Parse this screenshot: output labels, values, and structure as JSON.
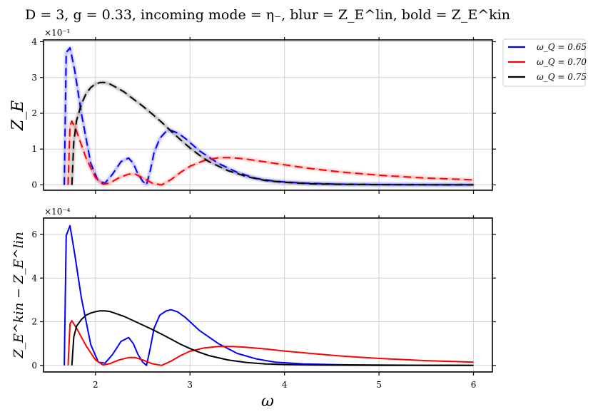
{
  "figure": {
    "title": "D = 3, g = 0.33, incoming mode = η₋, blur = Z_E^lin, bold = Z_E^kin"
  },
  "legend": {
    "entries": [
      {
        "label": "ω_Q = 0.65",
        "color": "#0000ff"
      },
      {
        "label": "ω_Q = 0.70",
        "color": "#ff0000"
      },
      {
        "label": "ω_Q = 0.75",
        "color": "#000000"
      }
    ]
  },
  "chart_data": [
    {
      "type": "line",
      "title": "D = 3, g = 0.33, incoming mode = η₋, blur = Z_E^lin, bold = Z_E^kin",
      "xlabel": "",
      "ylabel": "Z_E",
      "y_scale_label": "×10⁻¹",
      "xlim": [
        1.45,
        6.2
      ],
      "ylim": [
        -0.15,
        4.05
      ],
      "xticks": [
        2,
        3,
        4,
        5,
        6
      ],
      "yticks": [
        0,
        1,
        2,
        3,
        4
      ],
      "ytick_labels": [
        "0",
        "1",
        "2",
        "3",
        "4"
      ],
      "grid": true,
      "style": "blurred solid lines overlaid with bold dashed lines",
      "series": [
        {
          "name": "ω_Q = 0.65",
          "color": "#0000ff",
          "x": [
            1.67,
            1.69,
            1.73,
            1.78,
            1.85,
            1.95,
            2.03,
            2.1,
            2.18,
            2.27,
            2.35,
            2.4,
            2.45,
            2.5,
            2.54,
            2.58,
            2.62,
            2.68,
            2.75,
            2.8,
            2.87,
            2.95,
            3.1,
            3.3,
            3.5,
            3.7,
            3.9,
            4.2,
            4.6,
            5.0,
            5.5,
            6.0
          ],
          "y": [
            0.0,
            3.7,
            3.83,
            3.2,
            2.0,
            0.6,
            0.1,
            0.05,
            0.3,
            0.65,
            0.75,
            0.6,
            0.3,
            0.1,
            0.0,
            0.4,
            0.9,
            1.3,
            1.5,
            1.52,
            1.45,
            1.3,
            0.95,
            0.6,
            0.35,
            0.18,
            0.1,
            0.05,
            0.02,
            0.01,
            0.005,
            0.003
          ]
        },
        {
          "name": "ω_Q = 0.70",
          "color": "#ff0000",
          "x": [
            1.71,
            1.73,
            1.75,
            1.8,
            1.9,
            2.0,
            2.08,
            2.15,
            2.25,
            2.35,
            2.42,
            2.5,
            2.6,
            2.7,
            2.8,
            2.9,
            3.0,
            3.15,
            3.3,
            3.45,
            3.6,
            3.8,
            4.0,
            4.3,
            4.6,
            5.0,
            5.5,
            6.0
          ],
          "y": [
            0.0,
            1.65,
            1.78,
            1.5,
            0.75,
            0.2,
            0.02,
            0.05,
            0.2,
            0.3,
            0.3,
            0.2,
            0.05,
            0.0,
            0.15,
            0.35,
            0.52,
            0.68,
            0.76,
            0.76,
            0.72,
            0.64,
            0.56,
            0.45,
            0.36,
            0.27,
            0.19,
            0.14
          ]
        },
        {
          "name": "ω_Q = 0.75",
          "color": "#000000",
          "x": [
            1.75,
            1.77,
            1.8,
            1.85,
            1.9,
            1.95,
            2.0,
            2.05,
            2.1,
            2.15,
            2.2,
            2.3,
            2.4,
            2.5,
            2.6,
            2.7,
            2.8,
            2.9,
            3.0,
            3.1,
            3.2,
            3.4,
            3.6,
            3.8,
            4.0,
            4.3,
            4.6,
            5.0,
            5.5,
            6.0
          ],
          "y": [
            0.0,
            1.2,
            1.8,
            2.25,
            2.55,
            2.72,
            2.82,
            2.86,
            2.86,
            2.82,
            2.75,
            2.6,
            2.4,
            2.2,
            1.98,
            1.75,
            1.5,
            1.26,
            1.03,
            0.83,
            0.65,
            0.4,
            0.23,
            0.12,
            0.07,
            0.03,
            0.015,
            0.008,
            0.004,
            0.002
          ]
        }
      ]
    },
    {
      "type": "line",
      "title": "",
      "xlabel": "ω",
      "ylabel": "Z_E^kin − Z_E^lin",
      "y_scale_label": "×10⁻⁴",
      "xlim": [
        1.45,
        6.2
      ],
      "ylim": [
        -0.3,
        6.75
      ],
      "xticks": [
        2,
        3,
        4,
        5,
        6
      ],
      "xtick_labels": [
        "2",
        "3",
        "4",
        "5",
        "6"
      ],
      "yticks": [
        0,
        2,
        4,
        6
      ],
      "ytick_labels": [
        "0",
        "2",
        "4",
        "6"
      ],
      "grid": true,
      "series": [
        {
          "name": "ω_Q = 0.65",
          "color": "#0000ff",
          "x": [
            1.67,
            1.69,
            1.73,
            1.78,
            1.85,
            1.95,
            2.03,
            2.1,
            2.18,
            2.27,
            2.35,
            2.4,
            2.45,
            2.5,
            2.54,
            2.58,
            2.62,
            2.68,
            2.75,
            2.8,
            2.87,
            2.95,
            3.1,
            3.3,
            3.5,
            3.7,
            3.9,
            4.2,
            4.6,
            5.0,
            5.5,
            6.0
          ],
          "y": [
            0.0,
            5.95,
            6.4,
            5.1,
            3.1,
            0.95,
            0.15,
            0.1,
            0.5,
            1.1,
            1.28,
            1.0,
            0.5,
            0.15,
            0.0,
            0.8,
            1.7,
            2.3,
            2.5,
            2.55,
            2.45,
            2.2,
            1.6,
            1.0,
            0.55,
            0.3,
            0.15,
            0.07,
            0.03,
            0.015,
            0.008,
            0.004
          ]
        },
        {
          "name": "ω_Q = 0.70",
          "color": "#ff0000",
          "x": [
            1.71,
            1.73,
            1.75,
            1.8,
            1.9,
            2.0,
            2.08,
            2.15,
            2.25,
            2.35,
            2.42,
            2.5,
            2.6,
            2.7,
            2.8,
            2.9,
            3.0,
            3.15,
            3.3,
            3.45,
            3.6,
            3.8,
            4.0,
            4.3,
            4.6,
            5.0,
            5.5,
            6.0
          ],
          "y": [
            0.0,
            1.9,
            2.05,
            1.7,
            0.9,
            0.25,
            0.02,
            0.08,
            0.25,
            0.36,
            0.36,
            0.25,
            0.08,
            0.0,
            0.2,
            0.45,
            0.65,
            0.8,
            0.87,
            0.87,
            0.83,
            0.75,
            0.66,
            0.54,
            0.43,
            0.32,
            0.22,
            0.15
          ]
        },
        {
          "name": "ω_Q = 0.75",
          "color": "#000000",
          "x": [
            1.75,
            1.77,
            1.8,
            1.85,
            1.9,
            1.95,
            2.0,
            2.05,
            2.1,
            2.15,
            2.2,
            2.3,
            2.4,
            2.5,
            2.6,
            2.7,
            2.8,
            2.9,
            3.0,
            3.1,
            3.2,
            3.4,
            3.6,
            3.8,
            4.0,
            4.3,
            4.6,
            5.0,
            5.5,
            6.0
          ],
          "y": [
            0.0,
            1.3,
            1.8,
            2.1,
            2.3,
            2.4,
            2.46,
            2.5,
            2.5,
            2.47,
            2.4,
            2.25,
            2.05,
            1.85,
            1.65,
            1.43,
            1.2,
            0.97,
            0.77,
            0.6,
            0.45,
            0.25,
            0.13,
            0.07,
            0.04,
            0.02,
            0.01,
            0.005,
            0.003,
            0.002
          ]
        }
      ]
    }
  ]
}
